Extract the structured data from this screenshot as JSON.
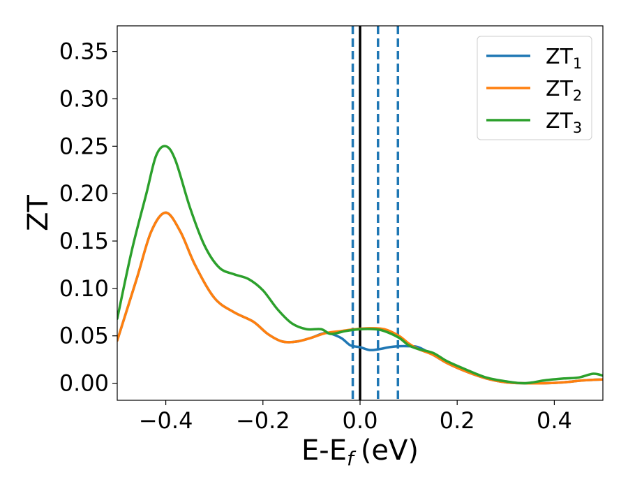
{
  "chart_data": {
    "type": "line",
    "xlabel": "E-E",
    "xlabel_sub": "f",
    "xlabel_unit": "(eV)",
    "ylabel": "ZT",
    "xlim": [
      -0.5,
      0.5
    ],
    "ylim": [
      -0.018,
      0.377
    ],
    "xticks": [
      -0.4,
      -0.2,
      0.0,
      0.2,
      0.4
    ],
    "xtick_labels": [
      "−0.4",
      "−0.2",
      "0.0",
      "0.2",
      "0.4"
    ],
    "yticks": [
      0.0,
      0.05,
      0.1,
      0.15,
      0.2,
      0.25,
      0.3,
      0.35
    ],
    "ytick_labels": [
      "0.00",
      "0.05",
      "0.10",
      "0.15",
      "0.20",
      "0.25",
      "0.30",
      "0.35"
    ],
    "grid": false,
    "legend_position": "top-right",
    "vertical_lines": [
      {
        "x": 0.0,
        "style": "solid",
        "color": "#000000"
      },
      {
        "x": -0.015,
        "style": "dashed",
        "color": "#1f77b4"
      },
      {
        "x": 0.037,
        "style": "dashed",
        "color": "#1f77b4"
      },
      {
        "x": 0.078,
        "style": "dashed",
        "color": "#1f77b4"
      }
    ],
    "series": [
      {
        "name": "ZT",
        "sub": "1",
        "color": "#1f77b4",
        "x": [
          -0.5,
          -0.46,
          -0.43,
          -0.4,
          -0.37,
          -0.34,
          -0.3,
          -0.26,
          -0.22,
          -0.19,
          -0.16,
          -0.13,
          -0.1,
          -0.07,
          -0.04,
          -0.02,
          0.0,
          0.02,
          0.04,
          0.06,
          0.08,
          0.1,
          0.12,
          0.15,
          0.18,
          0.22,
          0.26,
          0.3,
          0.34,
          0.38,
          0.42,
          0.46,
          0.5
        ],
        "y": [
          0.045,
          0.11,
          0.16,
          0.18,
          0.16,
          0.125,
          0.09,
          0.075,
          0.065,
          0.052,
          0.044,
          0.044,
          0.048,
          0.053,
          0.048,
          0.04,
          0.038,
          0.035,
          0.036,
          0.038,
          0.039,
          0.039,
          0.038,
          0.03,
          0.021,
          0.012,
          0.005,
          0.001,
          0.0,
          0.0,
          0.001,
          0.003,
          0.004
        ]
      },
      {
        "name": "ZT",
        "sub": "2",
        "color": "#ff7f0e",
        "x": [
          -0.5,
          -0.46,
          -0.43,
          -0.4,
          -0.37,
          -0.34,
          -0.3,
          -0.26,
          -0.22,
          -0.19,
          -0.16,
          -0.13,
          -0.1,
          -0.07,
          -0.04,
          -0.01,
          0.02,
          0.05,
          0.08,
          0.1,
          0.12,
          0.15,
          0.18,
          0.22,
          0.26,
          0.3,
          0.34,
          0.38,
          0.42,
          0.46,
          0.5
        ],
        "y": [
          0.045,
          0.11,
          0.16,
          0.18,
          0.16,
          0.125,
          0.09,
          0.075,
          0.065,
          0.052,
          0.044,
          0.044,
          0.048,
          0.053,
          0.055,
          0.057,
          0.058,
          0.057,
          0.05,
          0.042,
          0.036,
          0.03,
          0.021,
          0.012,
          0.005,
          0.001,
          0.0,
          0.0,
          0.001,
          0.003,
          0.004
        ]
      },
      {
        "name": "ZT",
        "sub": "3",
        "color": "#2ca02c",
        "x": [
          -0.5,
          -0.47,
          -0.44,
          -0.42,
          -0.4,
          -0.38,
          -0.35,
          -0.32,
          -0.29,
          -0.26,
          -0.23,
          -0.2,
          -0.17,
          -0.14,
          -0.11,
          -0.08,
          -0.06,
          -0.03,
          0.0,
          0.03,
          0.05,
          0.08,
          0.1,
          0.12,
          0.15,
          0.18,
          0.22,
          0.26,
          0.3,
          0.34,
          0.38,
          0.42,
          0.45,
          0.48,
          0.5
        ],
        "y": [
          0.068,
          0.14,
          0.2,
          0.24,
          0.25,
          0.235,
          0.185,
          0.145,
          0.122,
          0.115,
          0.11,
          0.098,
          0.078,
          0.063,
          0.057,
          0.057,
          0.052,
          0.055,
          0.057,
          0.057,
          0.055,
          0.048,
          0.04,
          0.036,
          0.032,
          0.023,
          0.014,
          0.006,
          0.002,
          0.0,
          0.003,
          0.005,
          0.006,
          0.01,
          0.008
        ]
      }
    ]
  }
}
